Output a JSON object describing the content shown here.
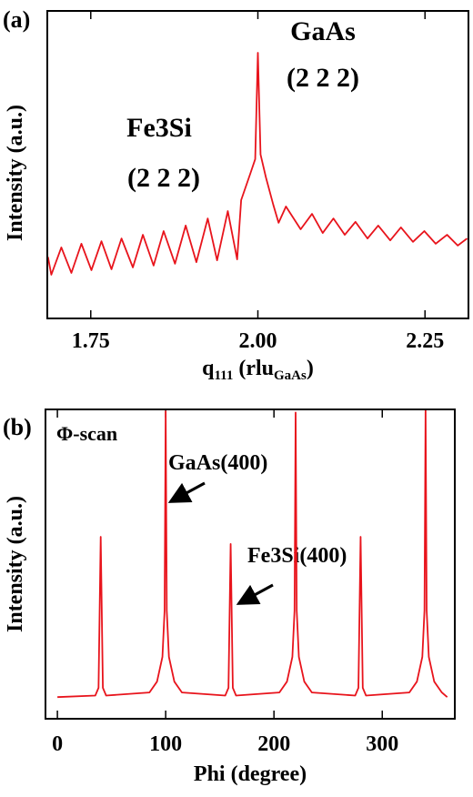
{
  "chart_data": [
    {
      "type": "line",
      "panel_label": "(a)",
      "x_label": [
        "q",
        "111",
        " (rlu",
        "GaAs",
        ")"
      ],
      "y_label": "Intensity (a.u.)",
      "annotations": [
        "GaAs",
        "(2 2 2)",
        "Fe3Si",
        "(2 2 2)"
      ],
      "color": "#e8141c",
      "xlim": [
        1.685,
        2.315
      ],
      "ylim": [
        0,
        10
      ],
      "xticks": [
        {
          "value": 1.75,
          "label": "1.75"
        },
        {
          "value": 2.0,
          "label": "2.00"
        },
        {
          "value": 2.25,
          "label": "2.25"
        }
      ],
      "x": [
        1.686,
        1.691,
        1.706,
        1.721,
        1.736,
        1.751,
        1.766,
        1.781,
        1.796,
        1.813,
        1.828,
        1.844,
        1.859,
        1.876,
        1.892,
        1.908,
        1.925,
        1.939,
        1.955,
        1.969,
        1.975,
        1.989,
        1.996,
        2.0,
        2.004,
        2.012,
        2.023,
        2.031,
        2.042,
        2.064,
        2.081,
        2.097,
        2.113,
        2.13,
        2.146,
        2.164,
        2.18,
        2.198,
        2.214,
        2.232,
        2.249,
        2.266,
        2.283,
        2.299,
        2.313
      ],
      "values": [
        2.0,
        1.42,
        2.31,
        1.48,
        2.43,
        1.57,
        2.51,
        1.6,
        2.6,
        1.66,
        2.72,
        1.72,
        2.84,
        1.78,
        3.02,
        1.83,
        3.25,
        1.89,
        3.49,
        1.92,
        3.85,
        4.73,
        5.18,
        8.64,
        5.33,
        4.59,
        3.7,
        3.11,
        3.64,
        2.9,
        3.4,
        2.78,
        3.25,
        2.72,
        3.14,
        2.6,
        3.02,
        2.54,
        2.96,
        2.49,
        2.84,
        2.43,
        2.72,
        2.37,
        2.6
      ]
    },
    {
      "type": "line",
      "panel_label": "(b)",
      "x_label": [
        "Phi (degree)"
      ],
      "y_label": "Intensity (a.u.)",
      "annotations": [
        "Φ-scan",
        "GaAs(400)",
        "Fe3Si(400)"
      ],
      "color": "#e8141c",
      "xlim": [
        -11,
        367
      ],
      "ylim": [
        0,
        10
      ],
      "xticks": [
        0,
        100,
        200,
        300
      ],
      "x": [
        0,
        35,
        38,
        40,
        42,
        45,
        85,
        92,
        97,
        99,
        100,
        101,
        103,
        108,
        115,
        155,
        158,
        160,
        162,
        165,
        205,
        212,
        217,
        219,
        220,
        221,
        223,
        228,
        235,
        275,
        278,
        280,
        282,
        285,
        325,
        332,
        337,
        339,
        340,
        341,
        343,
        348,
        355,
        360
      ],
      "values": [
        0.7,
        0.75,
        1.0,
        5.88,
        1.0,
        0.75,
        0.85,
        1.2,
        2.0,
        3.5,
        9.94,
        3.5,
        2.0,
        1.2,
        0.85,
        0.75,
        1.0,
        5.65,
        1.0,
        0.75,
        0.85,
        1.2,
        2.0,
        3.5,
        9.9,
        3.5,
        2.0,
        1.2,
        0.85,
        0.75,
        1.0,
        5.88,
        1.0,
        0.75,
        0.85,
        1.2,
        2.0,
        3.5,
        10,
        3.5,
        2.0,
        1.2,
        0.85,
        0.7
      ]
    }
  ]
}
